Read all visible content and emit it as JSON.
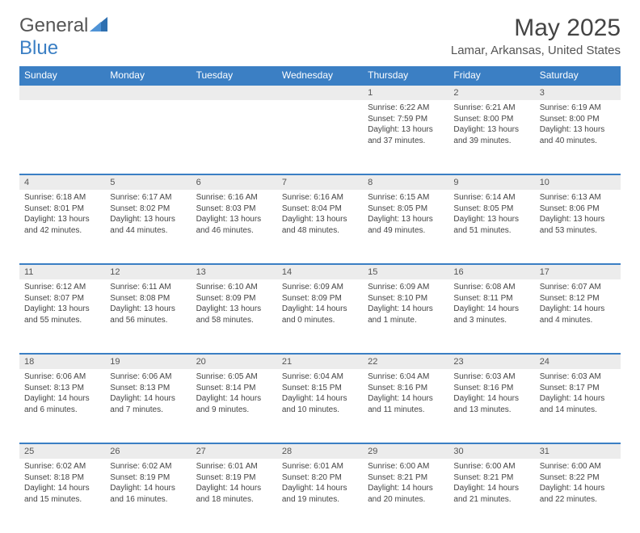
{
  "brand": {
    "part1": "General",
    "part2": "Blue"
  },
  "title": "May 2025",
  "location": "Lamar, Arkansas, United States",
  "colors": {
    "header_bg": "#3b7fc4",
    "header_text": "#ffffff",
    "daynum_bg": "#ececec",
    "border": "#3b7fc4",
    "body_text": "#444444"
  },
  "day_headers": [
    "Sunday",
    "Monday",
    "Tuesday",
    "Wednesday",
    "Thursday",
    "Friday",
    "Saturday"
  ],
  "weeks": [
    [
      null,
      null,
      null,
      null,
      {
        "n": "1",
        "sr": "Sunrise: 6:22 AM",
        "ss": "Sunset: 7:59 PM",
        "dl": "Daylight: 13 hours and 37 minutes."
      },
      {
        "n": "2",
        "sr": "Sunrise: 6:21 AM",
        "ss": "Sunset: 8:00 PM",
        "dl": "Daylight: 13 hours and 39 minutes."
      },
      {
        "n": "3",
        "sr": "Sunrise: 6:19 AM",
        "ss": "Sunset: 8:00 PM",
        "dl": "Daylight: 13 hours and 40 minutes."
      }
    ],
    [
      {
        "n": "4",
        "sr": "Sunrise: 6:18 AM",
        "ss": "Sunset: 8:01 PM",
        "dl": "Daylight: 13 hours and 42 minutes."
      },
      {
        "n": "5",
        "sr": "Sunrise: 6:17 AM",
        "ss": "Sunset: 8:02 PM",
        "dl": "Daylight: 13 hours and 44 minutes."
      },
      {
        "n": "6",
        "sr": "Sunrise: 6:16 AM",
        "ss": "Sunset: 8:03 PM",
        "dl": "Daylight: 13 hours and 46 minutes."
      },
      {
        "n": "7",
        "sr": "Sunrise: 6:16 AM",
        "ss": "Sunset: 8:04 PM",
        "dl": "Daylight: 13 hours and 48 minutes."
      },
      {
        "n": "8",
        "sr": "Sunrise: 6:15 AM",
        "ss": "Sunset: 8:05 PM",
        "dl": "Daylight: 13 hours and 49 minutes."
      },
      {
        "n": "9",
        "sr": "Sunrise: 6:14 AM",
        "ss": "Sunset: 8:05 PM",
        "dl": "Daylight: 13 hours and 51 minutes."
      },
      {
        "n": "10",
        "sr": "Sunrise: 6:13 AM",
        "ss": "Sunset: 8:06 PM",
        "dl": "Daylight: 13 hours and 53 minutes."
      }
    ],
    [
      {
        "n": "11",
        "sr": "Sunrise: 6:12 AM",
        "ss": "Sunset: 8:07 PM",
        "dl": "Daylight: 13 hours and 55 minutes."
      },
      {
        "n": "12",
        "sr": "Sunrise: 6:11 AM",
        "ss": "Sunset: 8:08 PM",
        "dl": "Daylight: 13 hours and 56 minutes."
      },
      {
        "n": "13",
        "sr": "Sunrise: 6:10 AM",
        "ss": "Sunset: 8:09 PM",
        "dl": "Daylight: 13 hours and 58 minutes."
      },
      {
        "n": "14",
        "sr": "Sunrise: 6:09 AM",
        "ss": "Sunset: 8:09 PM",
        "dl": "Daylight: 14 hours and 0 minutes."
      },
      {
        "n": "15",
        "sr": "Sunrise: 6:09 AM",
        "ss": "Sunset: 8:10 PM",
        "dl": "Daylight: 14 hours and 1 minute."
      },
      {
        "n": "16",
        "sr": "Sunrise: 6:08 AM",
        "ss": "Sunset: 8:11 PM",
        "dl": "Daylight: 14 hours and 3 minutes."
      },
      {
        "n": "17",
        "sr": "Sunrise: 6:07 AM",
        "ss": "Sunset: 8:12 PM",
        "dl": "Daylight: 14 hours and 4 minutes."
      }
    ],
    [
      {
        "n": "18",
        "sr": "Sunrise: 6:06 AM",
        "ss": "Sunset: 8:13 PM",
        "dl": "Daylight: 14 hours and 6 minutes."
      },
      {
        "n": "19",
        "sr": "Sunrise: 6:06 AM",
        "ss": "Sunset: 8:13 PM",
        "dl": "Daylight: 14 hours and 7 minutes."
      },
      {
        "n": "20",
        "sr": "Sunrise: 6:05 AM",
        "ss": "Sunset: 8:14 PM",
        "dl": "Daylight: 14 hours and 9 minutes."
      },
      {
        "n": "21",
        "sr": "Sunrise: 6:04 AM",
        "ss": "Sunset: 8:15 PM",
        "dl": "Daylight: 14 hours and 10 minutes."
      },
      {
        "n": "22",
        "sr": "Sunrise: 6:04 AM",
        "ss": "Sunset: 8:16 PM",
        "dl": "Daylight: 14 hours and 11 minutes."
      },
      {
        "n": "23",
        "sr": "Sunrise: 6:03 AM",
        "ss": "Sunset: 8:16 PM",
        "dl": "Daylight: 14 hours and 13 minutes."
      },
      {
        "n": "24",
        "sr": "Sunrise: 6:03 AM",
        "ss": "Sunset: 8:17 PM",
        "dl": "Daylight: 14 hours and 14 minutes."
      }
    ],
    [
      {
        "n": "25",
        "sr": "Sunrise: 6:02 AM",
        "ss": "Sunset: 8:18 PM",
        "dl": "Daylight: 14 hours and 15 minutes."
      },
      {
        "n": "26",
        "sr": "Sunrise: 6:02 AM",
        "ss": "Sunset: 8:19 PM",
        "dl": "Daylight: 14 hours and 16 minutes."
      },
      {
        "n": "27",
        "sr": "Sunrise: 6:01 AM",
        "ss": "Sunset: 8:19 PM",
        "dl": "Daylight: 14 hours and 18 minutes."
      },
      {
        "n": "28",
        "sr": "Sunrise: 6:01 AM",
        "ss": "Sunset: 8:20 PM",
        "dl": "Daylight: 14 hours and 19 minutes."
      },
      {
        "n": "29",
        "sr": "Sunrise: 6:00 AM",
        "ss": "Sunset: 8:21 PM",
        "dl": "Daylight: 14 hours and 20 minutes."
      },
      {
        "n": "30",
        "sr": "Sunrise: 6:00 AM",
        "ss": "Sunset: 8:21 PM",
        "dl": "Daylight: 14 hours and 21 minutes."
      },
      {
        "n": "31",
        "sr": "Sunrise: 6:00 AM",
        "ss": "Sunset: 8:22 PM",
        "dl": "Daylight: 14 hours and 22 minutes."
      }
    ]
  ]
}
